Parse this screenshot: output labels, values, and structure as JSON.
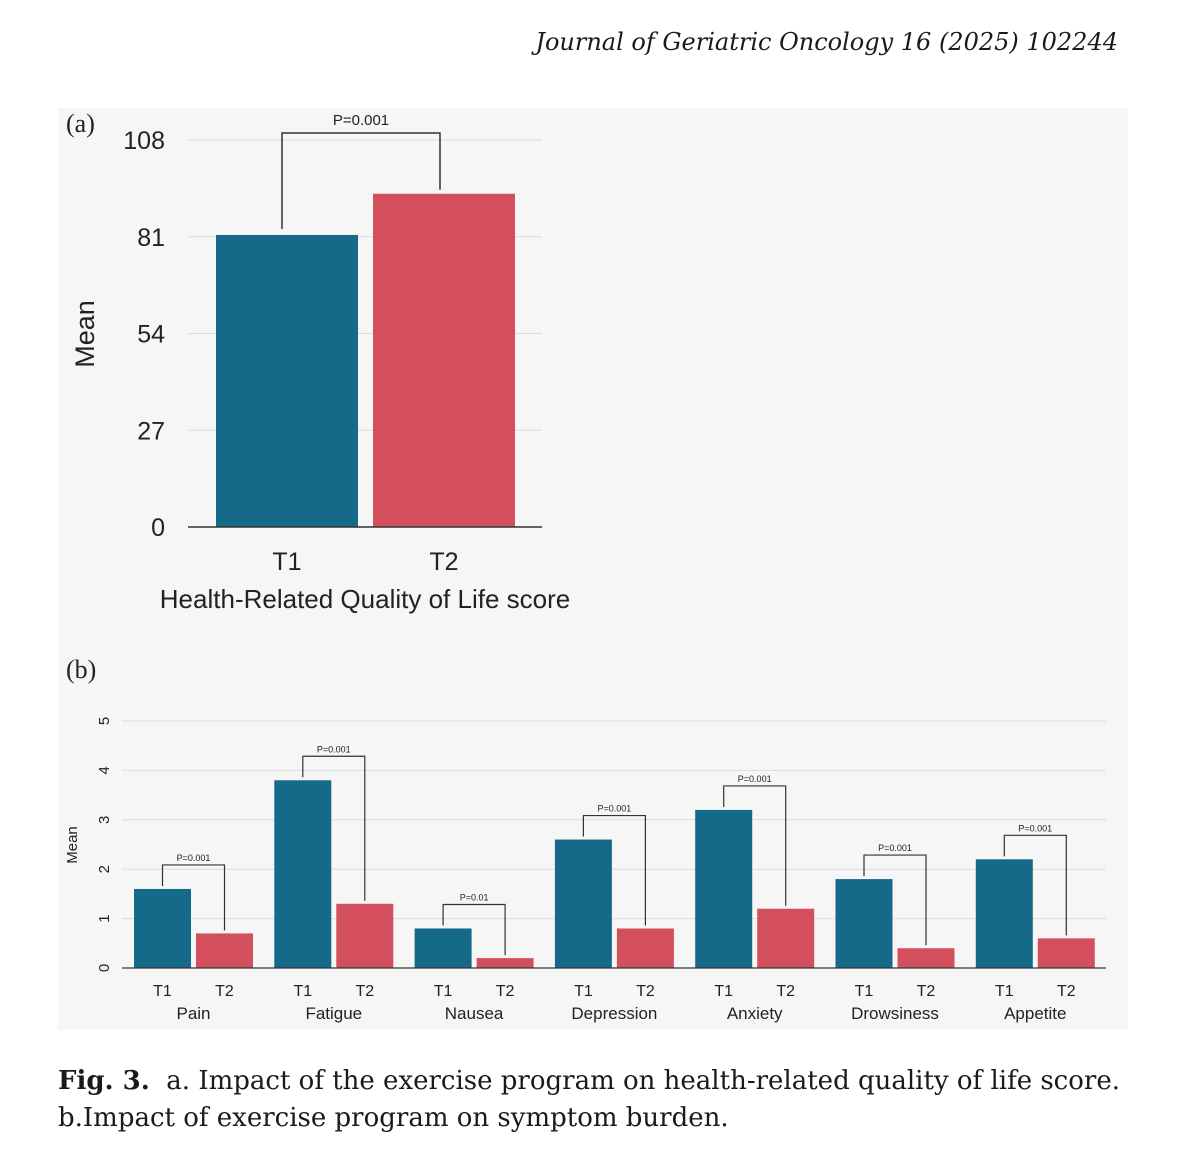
{
  "header": {
    "journal": "Journal of Geriatric Oncology 16 (2025) 102244"
  },
  "colors": {
    "t1": "#156a89",
    "t2": "#d44f5e",
    "grid": "#dcdcdc",
    "axis": "#333333",
    "bracket": "#333333"
  },
  "chart_data": [
    {
      "panel": "(a)",
      "type": "bar",
      "categories": [
        "T1",
        "T2"
      ],
      "values": [
        81.5,
        93
      ],
      "xlabel": "Health-Related Quality of Life score",
      "ylabel": "Mean",
      "ylim": [
        0,
        108
      ],
      "yticks": [
        0,
        27,
        54,
        81,
        108
      ],
      "grid": true,
      "annotation": "P=0.001"
    },
    {
      "panel": "(b)",
      "type": "bar",
      "groups": [
        "Pain",
        "Fatigue",
        "Nausea",
        "Depression",
        "Anxiety",
        "Drowsiness",
        "Appetite"
      ],
      "sub_categories": [
        "T1",
        "T2"
      ],
      "series": [
        {
          "name": "T1",
          "values": [
            1.6,
            3.8,
            0.8,
            2.6,
            3.2,
            1.8,
            2.2
          ]
        },
        {
          "name": "T2",
          "values": [
            0.7,
            1.3,
            0.2,
            0.8,
            1.2,
            0.4,
            0.6
          ]
        }
      ],
      "p_values": [
        "P=0.001",
        "P=0.001",
        "P=0.01",
        "P=0.001",
        "P=0.001",
        "P=0.001",
        "P=0.001"
      ],
      "ylabel": "Mean",
      "ylim": [
        0,
        5
      ],
      "yticks": [
        0,
        1,
        2,
        3,
        4,
        5
      ],
      "grid": true
    }
  ],
  "caption": {
    "label": "Fig. 3.",
    "line1": "a. Impact of the exercise program on health-related quality of life score.",
    "line2": "b.Impact of exercise program on symptom burden."
  }
}
